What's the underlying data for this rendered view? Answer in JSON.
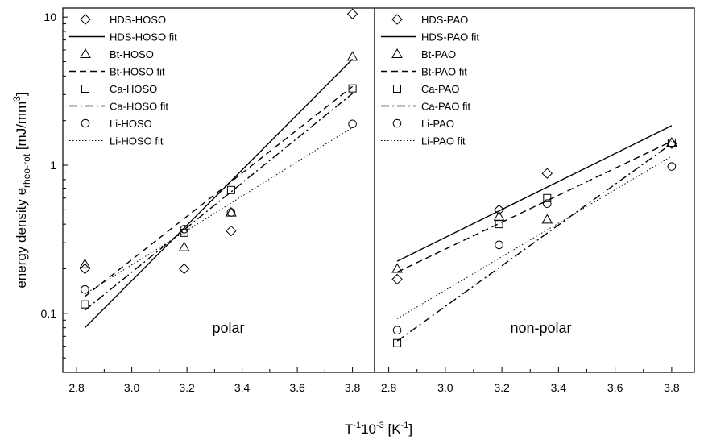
{
  "chart_data": {
    "type": "scatter",
    "yscale": "log",
    "ylabel": {
      "main": "energy density e",
      "sub": "rheo-rot",
      "unit_pre": " [mJ/mm",
      "unit_sup": "3",
      "unit_post": "]"
    },
    "xlabel": {
      "pre": "T",
      "sup1": "-1",
      "mid": "10",
      "sup2": "-3",
      "post": " [K",
      "sup3": "-1",
      "end": "]"
    },
    "xlim": [
      2.75,
      3.88
    ],
    "ylim": [
      0.04,
      11.5
    ],
    "xticks": [
      2.8,
      3.0,
      3.2,
      3.4,
      3.6,
      3.8
    ],
    "xtick_labels": [
      "2.8",
      "3.0",
      "3.2",
      "3.4",
      "3.6",
      "3.8"
    ],
    "yticks": [
      0.1,
      1,
      10
    ],
    "ytick_labels": [
      "0.1",
      "1",
      "10"
    ],
    "panels": [
      {
        "label": "polar",
        "series": [
          {
            "name": "HDS-HOSO",
            "fit_name": "HDS-HOSO fit",
            "marker": "diamond",
            "line": "solid",
            "x": [
              2.83,
              3.19,
              3.36,
              3.8
            ],
            "y": [
              0.2,
              0.2,
              0.36,
              10.5
            ],
            "fit": {
              "x": [
                2.83,
                3.8
              ],
              "y": [
                0.08,
                5.2
              ]
            }
          },
          {
            "name": "Bt-HOSO",
            "fit_name": "Bt-HOSO fit",
            "marker": "triangle",
            "line": "dashed",
            "x": [
              2.83,
              3.19,
              3.36,
              3.8
            ],
            "y": [
              0.215,
              0.28,
              0.48,
              5.4
            ],
            "fit": {
              "x": [
                2.83,
                3.8
              ],
              "y": [
                0.13,
                3.4
              ]
            }
          },
          {
            "name": "Ca-HOSO",
            "fit_name": "Ca-HOSO fit",
            "marker": "square",
            "line": "dashdot",
            "x": [
              2.83,
              3.19,
              3.36,
              3.8
            ],
            "y": [
              0.115,
              0.35,
              0.68,
              3.3
            ],
            "fit": {
              "x": [
                2.83,
                3.8
              ],
              "y": [
                0.105,
                3.05
              ]
            }
          },
          {
            "name": "Li-HOSO",
            "fit_name": "Li-HOSO fit",
            "marker": "circle",
            "line": "dotted",
            "x": [
              2.83,
              3.19,
              3.36,
              3.8
            ],
            "y": [
              0.145,
              0.37,
              0.48,
              1.9
            ],
            "fit": {
              "x": [
                2.83,
                3.8
              ],
              "y": [
                0.135,
                1.8
              ]
            }
          }
        ]
      },
      {
        "label": "non-polar",
        "series": [
          {
            "name": "HDS-PAO",
            "fit_name": "HDS-PAO fit",
            "marker": "diamond",
            "line": "solid",
            "x": [
              2.83,
              3.19,
              3.36,
              3.8
            ],
            "y": [
              0.17,
              0.5,
              0.88,
              1.4
            ],
            "fit": {
              "x": [
                2.83,
                3.8
              ],
              "y": [
                0.225,
                1.85
              ]
            }
          },
          {
            "name": "Bt-PAO",
            "fit_name": "Bt-PAO fit",
            "marker": "triangle",
            "line": "dashed",
            "x": [
              2.83,
              3.19,
              3.36,
              3.8
            ],
            "y": [
              0.2,
              0.45,
              0.43,
              1.42
            ],
            "fit": {
              "x": [
                2.83,
                3.8
              ],
              "y": [
                0.19,
                1.45
              ]
            }
          },
          {
            "name": "Ca-PAO",
            "fit_name": "Ca-PAO fit",
            "marker": "square",
            "line": "dashdot",
            "x": [
              2.83,
              3.19,
              3.36,
              3.8
            ],
            "y": [
              0.063,
              0.4,
              0.6,
              1.42
            ],
            "fit": {
              "x": [
                2.83,
                3.8
              ],
              "y": [
                0.065,
                1.4
              ]
            }
          },
          {
            "name": "Li-PAO",
            "fit_name": "Li-PAO fit",
            "marker": "circle",
            "line": "dotted",
            "x": [
              2.83,
              3.19,
              3.36,
              3.8
            ],
            "y": [
              0.077,
              0.29,
              0.55,
              0.98
            ],
            "fit": {
              "x": [
                2.83,
                3.8
              ],
              "y": [
                0.092,
                1.15
              ]
            }
          }
        ]
      }
    ]
  }
}
